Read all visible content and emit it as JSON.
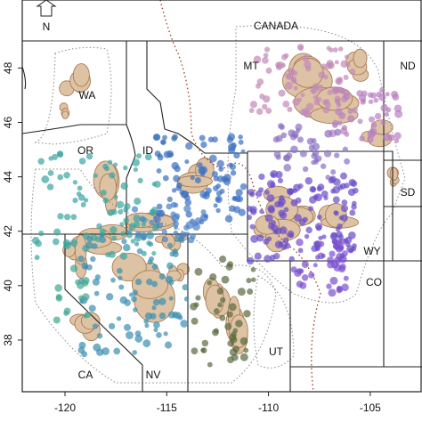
{
  "map": {
    "xlim": [
      -122.1,
      -102.5
    ],
    "ylim": [
      36.1,
      50.5
    ],
    "xticks": [
      -120,
      -115,
      -110,
      -105
    ],
    "yticks": [
      38,
      40,
      42,
      44,
      46,
      48
    ],
    "north": "N",
    "labels": {
      "canada": "CANADA",
      "mt": "MT",
      "nd": "ND",
      "wa": "WA",
      "or": "OR",
      "id": "ID",
      "sd": "SD",
      "wy": "WY",
      "co": "CO",
      "ut": "UT",
      "ca": "CA",
      "nv": "NV"
    }
  }
}
